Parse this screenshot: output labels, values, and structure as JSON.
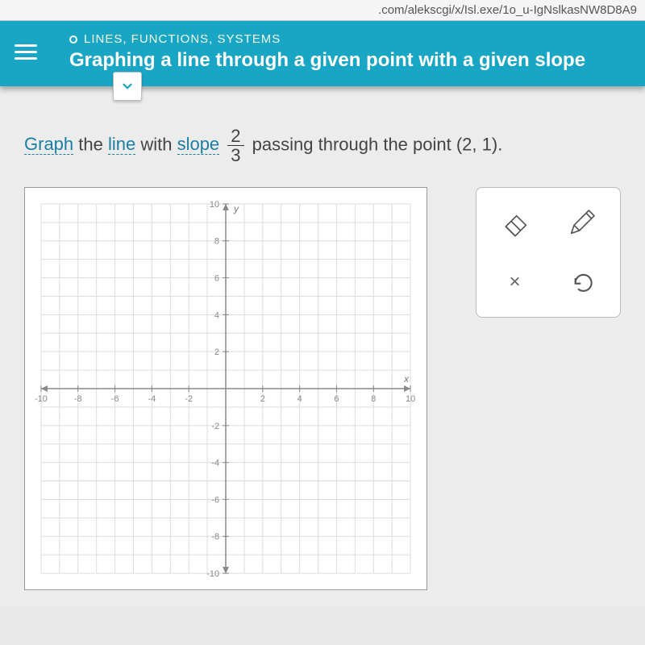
{
  "url_fragment": ".com/alekscgi/x/Isl.exe/1o_u-IgNslkasNW8D8A9",
  "header": {
    "breadcrumb": "LINES, FUNCTIONS, SYSTEMS",
    "title": "Graphing a line through a given point with a given slope"
  },
  "prompt": {
    "term_graph": "Graph",
    "text_the": " the ",
    "term_line": "line",
    "text_with": " with ",
    "term_slope": "slope",
    "slope_num": "2",
    "slope_den": "3",
    "text_passing": " passing through the point ",
    "point": "(2, 1)",
    "text_end": "."
  },
  "graph": {
    "xmin": -10,
    "xmax": 10,
    "ymin": -10,
    "ymax": 10,
    "tick_step": 2,
    "x_label": "x",
    "y_label": "y",
    "grid_color": "#dddddd",
    "axis_color": "#888888",
    "background": "#ffffff"
  },
  "tools": {
    "eraser": "eraser-icon",
    "pencil": "pencil-icon",
    "clear": "×",
    "undo": "undo-icon"
  }
}
